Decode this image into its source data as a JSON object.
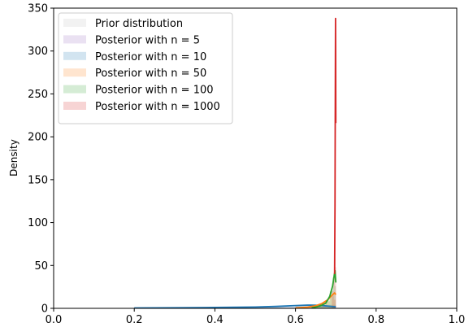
{
  "chart_data": {
    "type": "area",
    "xlabel": "",
    "ylabel": "Density",
    "xlim": [
      0.0,
      1.0
    ],
    "ylim": [
      0,
      350
    ],
    "xticks": [
      "0.0",
      "0.2",
      "0.4",
      "0.6",
      "0.8",
      "1.0"
    ],
    "yticks": [
      "0",
      "50",
      "100",
      "150",
      "200",
      "250",
      "300",
      "350"
    ],
    "grid": false,
    "legend_position": "top-left",
    "series": [
      {
        "name": "Prior distribution",
        "color": "#bdbdbd",
        "style": "histogram",
        "bins": [
          [
            0.2,
            0.3,
            1.0
          ],
          [
            0.3,
            0.4,
            1.0
          ],
          [
            0.4,
            0.5,
            1.0
          ],
          [
            0.5,
            0.6,
            1.0
          ],
          [
            0.6,
            0.7,
            1.0
          ]
        ],
        "kde": []
      },
      {
        "name": "Posterior with n = 5",
        "color": "#9467bd",
        "style": "histogram+kde",
        "bins": [
          [
            0.2,
            0.3,
            0.3
          ],
          [
            0.3,
            0.4,
            0.5
          ],
          [
            0.4,
            0.5,
            0.8
          ],
          [
            0.5,
            0.6,
            1.2
          ],
          [
            0.6,
            0.65,
            2.0
          ],
          [
            0.65,
            0.7,
            3.0
          ]
        ],
        "kde": []
      },
      {
        "name": "Posterior with n = 10",
        "color": "#1f77b4",
        "style": "histogram+kde",
        "bins": [
          [
            0.2,
            0.3,
            0.2
          ],
          [
            0.3,
            0.4,
            0.4
          ],
          [
            0.4,
            0.5,
            0.7
          ],
          [
            0.5,
            0.6,
            1.5
          ],
          [
            0.6,
            0.65,
            3.0
          ],
          [
            0.65,
            0.7,
            4.0
          ]
        ],
        "kde": [
          [
            0.2,
            0.4
          ],
          [
            0.3,
            0.7
          ],
          [
            0.4,
            1.0
          ],
          [
            0.5,
            1.5
          ],
          [
            0.55,
            2.2
          ],
          [
            0.6,
            3.2
          ],
          [
            0.63,
            3.8
          ],
          [
            0.66,
            3.5
          ],
          [
            0.68,
            2.6
          ],
          [
            0.7,
            1.8
          ]
        ]
      },
      {
        "name": "Posterior with n = 50",
        "color": "#ff7f0e",
        "style": "histogram+kde",
        "bins": [
          [
            0.6,
            0.64,
            1.0
          ],
          [
            0.64,
            0.67,
            3.0
          ],
          [
            0.67,
            0.685,
            8.0
          ],
          [
            0.685,
            0.695,
            14.0
          ],
          [
            0.695,
            0.7,
            10.0
          ]
        ],
        "kde": [
          [
            0.6,
            0.6
          ],
          [
            0.63,
            1.4
          ],
          [
            0.65,
            3.0
          ],
          [
            0.665,
            5.5
          ],
          [
            0.68,
            10.0
          ],
          [
            0.69,
            15.0
          ],
          [
            0.697,
            18.0
          ],
          [
            0.7,
            16.0
          ]
        ]
      },
      {
        "name": "Posterior with n = 100",
        "color": "#2ca02c",
        "style": "histogram+kde",
        "bins": [
          [
            0.66,
            0.675,
            3.0
          ],
          [
            0.675,
            0.685,
            9.0
          ],
          [
            0.685,
            0.692,
            20.0
          ],
          [
            0.692,
            0.697,
            36.0
          ],
          [
            0.697,
            0.7,
            26.0
          ]
        ],
        "kde": [
          [
            0.64,
            0.5
          ],
          [
            0.66,
            2.5
          ],
          [
            0.675,
            6.0
          ],
          [
            0.685,
            14.0
          ],
          [
            0.692,
            26.0
          ],
          [
            0.696,
            38.0
          ],
          [
            0.698,
            44.0
          ],
          [
            0.7,
            30.0
          ]
        ]
      },
      {
        "name": "Posterior with n = 1000",
        "color": "#d62728",
        "style": "histogram+kde",
        "bins": [
          [
            0.69,
            0.694,
            20.0
          ],
          [
            0.694,
            0.697,
            40.0
          ],
          [
            0.697,
            0.699,
            58.0
          ],
          [
            0.699,
            0.7,
            48.0
          ]
        ],
        "kde": [
          [
            0.697,
            40.0
          ],
          [
            0.698,
            120.0
          ],
          [
            0.6985,
            210.0
          ],
          [
            0.699,
            290.0
          ],
          [
            0.6993,
            338.0
          ],
          [
            0.6996,
            300.0
          ],
          [
            0.7,
            216.0
          ]
        ]
      }
    ]
  }
}
